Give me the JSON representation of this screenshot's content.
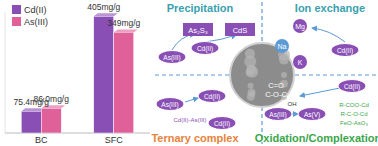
{
  "chart_data": {
    "type": "bar",
    "categories": [
      "BC",
      "SFC"
    ],
    "series": [
      {
        "name": "Cd(II)",
        "color": "#8a4fb5",
        "values": [
          75.4,
          405
        ],
        "value_labels": [
          "75.4mg/g",
          "405mg/g"
        ]
      },
      {
        "name": "As(III)",
        "color": "#e0609a",
        "values": [
          86.0,
          349
        ],
        "value_labels": [
          "86.0mg/g",
          "349mg/g"
        ]
      }
    ],
    "ylim": [
      0,
      420
    ],
    "yticks": [],
    "tick_labels": "x",
    "data_labels": true,
    "legend": "top-left"
  },
  "diagram": {
    "quadrants": [
      {
        "title": "Precipitation",
        "items": [
          {
            "label": "As(III)"
          },
          {
            "label": "Cd(II)"
          },
          {
            "label": "As₂S₃"
          },
          {
            "label": "CdS"
          }
        ]
      },
      {
        "title": "Ion exchange",
        "items": [
          {
            "label": "Mg"
          },
          {
            "label": "Na"
          },
          {
            "label": "K"
          },
          {
            "label": "Cd(II)"
          }
        ]
      },
      {
        "title": "Ternary complex",
        "items": [
          {
            "label": "As(III)"
          },
          {
            "label": "Cd(II)"
          },
          {
            "label": "Cd(II)"
          },
          {
            "label": "Cd(II)-As(III)"
          }
        ]
      },
      {
        "title": "Oxidation/Complexation",
        "items": [
          {
            "label": "Cd(II)"
          },
          {
            "label": "As(III)"
          },
          {
            "label": "As(V)"
          },
          {
            "label": "OH"
          },
          {
            "label": "R-COO-Cd"
          },
          {
            "label": "R-C-O-Cd"
          },
          {
            "label": "FeO-AsO₃"
          }
        ]
      }
    ],
    "center": {
      "labels": [
        "C=O",
        "C-O-C"
      ]
    }
  }
}
